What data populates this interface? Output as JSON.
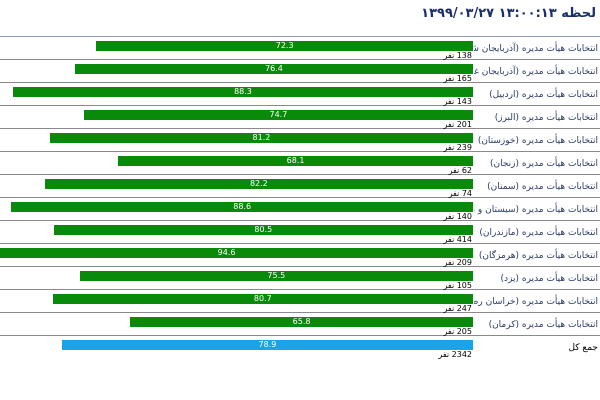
{
  "header": {
    "title": "لحظه ۱۳:۰۰:۱۳ ۱۳۹۹/۰۳/۲۷"
  },
  "colors": {
    "bar": "#0a8a0a",
    "total_bar": "#1aa3e8",
    "label_text": "#2a3a66",
    "header_text": "#1a2f6a"
  },
  "chart_data": {
    "type": "bar",
    "orientation": "horizontal",
    "direction": "right-to-left",
    "xlim": [
      0,
      100
    ],
    "categories": [
      "انتخابات هیأت مدیره (آذربایجان شرقی)",
      "انتخابات هیأت مدیره (آذربایجان غربی)",
      "انتخابات هیأت مدیره (اردبیل)",
      "انتخابات هیأت مدیره (البرز)",
      "انتخابات هیأت مدیره (خوزستان)",
      "انتخابات هیأت مدیره (زنجان)",
      "انتخابات هیأت مدیره (سمنان)",
      "انتخابات هیأت مدیره (سیستان و بلوچستان)",
      "انتخابات هیأت مدیره (مازندران)",
      "انتخابات هیأت مدیره (هرمزگان)",
      "انتخابات هیأت مدیره (یزد)",
      "انتخابات هیأت مدیره (خراسان رضوی)",
      "انتخابات هیأت مدیره (کرمان)",
      "جمع کل"
    ],
    "values": [
      72.3,
      76.4,
      88.3,
      74.7,
      81.2,
      68.1,
      82.2,
      88.6,
      80.5,
      94.6,
      75.5,
      80.7,
      65.8,
      78.9
    ],
    "value_labels": [
      "72.3",
      "76.4",
      "88.3",
      "74.7",
      "81.2",
      "68.1",
      "82.2",
      "88.6",
      "80.5",
      "94.6",
      "75.5",
      "80.7",
      "65.8",
      "78.9"
    ],
    "counts": [
      "138 نفر",
      "165 نفر",
      "143 نفر",
      "201 نفر",
      "239 نفر",
      "62 نفر",
      "74 نفر",
      "140 نفر",
      "414 نفر",
      "209 نفر",
      "105 نفر",
      "247 نفر",
      "205 نفر",
      "2342 نفر"
    ]
  }
}
